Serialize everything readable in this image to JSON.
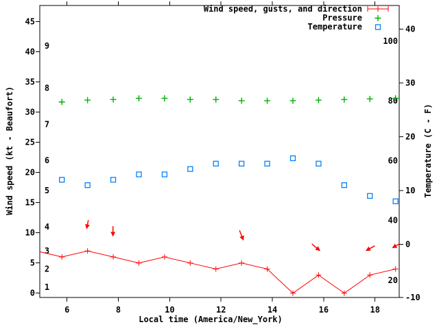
{
  "chart_data": {
    "type": "line",
    "legend": [
      {
        "label": "Wind speed, gusts, and direction",
        "marker": "errorbar-plus",
        "color": "#ff0000"
      },
      {
        "label": "Pressure",
        "marker": "plus",
        "color": "#00b000"
      },
      {
        "label": "Temperature",
        "marker": "open-square",
        "color": "#0080ff"
      }
    ],
    "xlabel": "Local time (America/New_York)",
    "ylabel_left": "Wind speed (kt - Beaufort)",
    "ylabel_right": "Temperature (C - F)",
    "x_axis": {
      "ticks": [
        6,
        8,
        10,
        12,
        14,
        16,
        18
      ],
      "range_hours": [
        4.94,
        19.0
      ]
    },
    "left_axis_kt": {
      "ticks": [
        0,
        5,
        10,
        15,
        20,
        25,
        30,
        35,
        40,
        45
      ]
    },
    "beaufort_labels": [
      {
        "label": "1",
        "kt": 1
      },
      {
        "label": "2",
        "kt": 4
      },
      {
        "label": "3",
        "kt": 7
      },
      {
        "label": "4",
        "kt": 11
      },
      {
        "label": "5",
        "kt": 17
      },
      {
        "label": "6",
        "kt": 22
      },
      {
        "label": "7",
        "kt": 28
      },
      {
        "label": "8",
        "kt": 34
      },
      {
        "label": "9",
        "kt": 41
      }
    ],
    "right_axis_c": {
      "ticks": [
        -10,
        0,
        10,
        20,
        30,
        40
      ]
    },
    "fahrenheit_labels": [
      {
        "label": "20",
        "f": 20
      },
      {
        "label": "40",
        "f": 40
      },
      {
        "label": "60",
        "f": 60
      },
      {
        "label": "80",
        "f": 80
      },
      {
        "label": "100",
        "f": 100
      }
    ],
    "series": {
      "wind_speed": {
        "name": "Wind speed, gusts, and direction",
        "color": "#ff0000",
        "times": [
          4.8,
          5.8,
          6.8,
          7.8,
          8.8,
          9.8,
          10.8,
          11.8,
          12.8,
          13.8,
          14.8,
          15.8,
          16.8,
          17.8,
          18.8
        ],
        "values_kt": [
          7,
          6,
          7,
          6,
          5,
          6,
          5,
          4,
          5,
          4,
          0,
          3,
          0,
          3,
          4
        ]
      },
      "pressure": {
        "name": "Pressure",
        "color": "#00b000",
        "note": "no pressure scale shown; values in left-axis plot units",
        "times": [
          5.8,
          6.8,
          7.8,
          8.8,
          9.8,
          10.8,
          11.8,
          12.8,
          13.8,
          14.8,
          15.8,
          16.8,
          17.8,
          18.8
        ],
        "values_plot_units": [
          31.7,
          32.0,
          32.1,
          32.3,
          32.3,
          32.1,
          32.1,
          31.9,
          31.9,
          31.9,
          32.0,
          32.1,
          32.2,
          32.3
        ]
      },
      "temperature": {
        "name": "Temperature",
        "color": "#0080ff",
        "times": [
          5.8,
          6.8,
          7.8,
          8.8,
          9.8,
          10.8,
          11.8,
          12.8,
          13.8,
          14.8,
          15.8,
          16.8,
          17.8,
          18.8
        ],
        "values_c": [
          12,
          11,
          12,
          13,
          13,
          14,
          15,
          15,
          15,
          16,
          15,
          11,
          9,
          8
        ]
      }
    },
    "gust_arrows": [
      {
        "tail": [
          6.83,
          12.1
        ],
        "head": [
          6.76,
          10.6
        ]
      },
      {
        "tail": [
          7.79,
          11.1
        ],
        "head": [
          7.79,
          9.35
        ]
      },
      {
        "tail": [
          12.72,
          10.4
        ],
        "head": [
          12.88,
          8.7
        ]
      },
      {
        "tail": [
          15.54,
          8.15
        ],
        "head": [
          15.87,
          6.98
        ]
      },
      {
        "tail": [
          17.99,
          7.84
        ],
        "head": [
          17.63,
          7.01
        ]
      },
      {
        "tail": [
          18.94,
          8.15
        ],
        "head": [
          18.66,
          7.47
        ]
      }
    ],
    "colors": {
      "border": "#000000",
      "background": "#ffffff",
      "wind": "#ff0000",
      "pressure": "#00b000",
      "temperature": "#0080ff"
    }
  }
}
